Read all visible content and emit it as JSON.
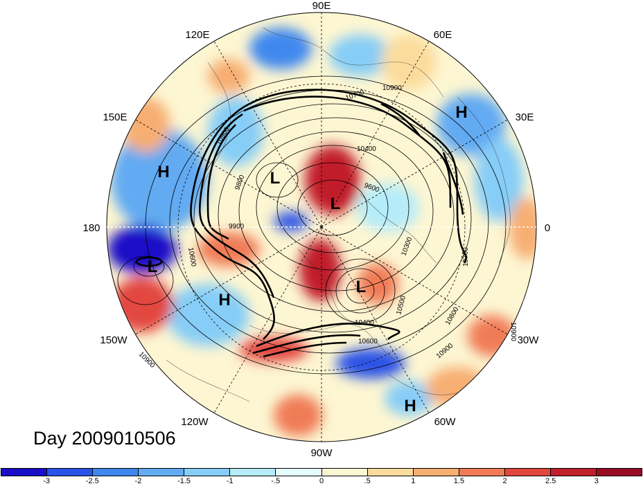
{
  "title": "Day 2009010506",
  "longitude_labels": [
    "90E",
    "60E",
    "30E",
    "0",
    "30W",
    "60W",
    "90W",
    "120W",
    "150W",
    "180",
    "150E",
    "120E"
  ],
  "pressure_systems": [
    "H",
    "H",
    "L",
    "L",
    "L",
    "L",
    "H",
    "H"
  ],
  "contour_labels": [
    "10700",
    "10900",
    "10400",
    "10900",
    "9800",
    "9600",
    "9900",
    "10600",
    "10300",
    "10500",
    "10400",
    "10800",
    "10600",
    "10900",
    "10900",
    "10700",
    "10900"
  ],
  "colorbar": {
    "tick_labels": [
      "-3",
      "-2.5",
      "-2",
      "-1.5",
      "-1",
      "-.5",
      "0",
      ".5",
      "1",
      "1.5",
      "2",
      "2.5",
      "3"
    ],
    "colors": [
      "#1a0fc8",
      "#2b52e6",
      "#3f88ee",
      "#62aaf2",
      "#86cdf7",
      "#b6ecf9",
      "#e6fbfb",
      "#fdf6d2",
      "#fbdc9c",
      "#f7ae72",
      "#f07b56",
      "#e2473f",
      "#c11f2c",
      "#990d24"
    ]
  }
}
